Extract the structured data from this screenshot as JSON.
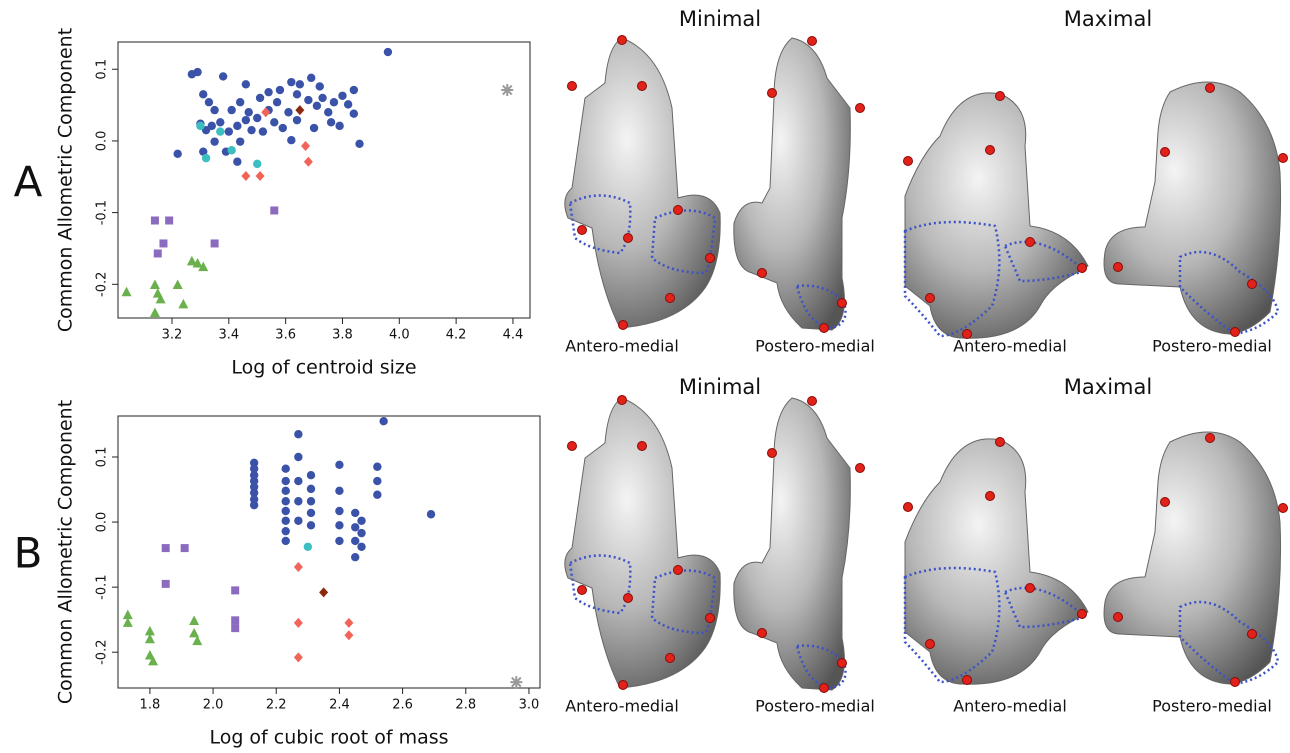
{
  "chart_data": [
    {
      "type": "scatter",
      "xlabel": "Log of centroid size",
      "ylabel": "Common Allometric Component",
      "xlim": [
        3.01,
        4.46
      ],
      "ylim": [
        -0.247,
        0.138
      ],
      "xticks": [
        3.2,
        3.4,
        3.6,
        3.8,
        {
          "value": 4.0,
          "label": "4.0"
        },
        4.2,
        4.4
      ],
      "yticks": [
        -0.2,
        -0.1,
        {
          "value": 0,
          "label": "0.0"
        },
        0.1
      ],
      "series": [
        {
          "color": "#3a52a8",
          "marker": "circle",
          "x": [
            3.27,
            3.29,
            3.38,
            3.46,
            3.31,
            3.33,
            3.35,
            3.51,
            3.54,
            3.58,
            3.62,
            3.65,
            3.69,
            3.72,
            3.73,
            3.64,
            3.68,
            3.71,
            3.75,
            3.77,
            3.8,
            3.82,
            3.84,
            3.84,
            3.76,
            3.79,
            3.7,
            3.64,
            3.61,
            3.59,
            3.56,
            3.52,
            3.48,
            3.46,
            3.43,
            3.4,
            3.37,
            3.34,
            3.32,
            3.3,
            3.41,
            3.44,
            3.47,
            3.5,
            3.54,
            3.57,
            3.62,
            3.44,
            3.43,
            3.86,
            3.96,
            3.22,
            3.39,
            3.31,
            3.35
          ],
          "values": [
            0.093,
            0.096,
            0.09,
            0.079,
            0.065,
            0.054,
            0.043,
            0.06,
            0.068,
            0.071,
            0.082,
            0.079,
            0.088,
            0.076,
            0.06,
            0.065,
            0.057,
            0.049,
            0.04,
            0.054,
            0.063,
            0.051,
            0.071,
            0.038,
            0.026,
            0.021,
            0.018,
            0.029,
            0.04,
            0.018,
            0.026,
            0.013,
            0.015,
            0.029,
            0.021,
            0.013,
            0.026,
            0.021,
            0.015,
            0.024,
            0.043,
            0.054,
            0.04,
            0.032,
            0.043,
            0.054,
            0.001,
            -0.001,
            -0.029,
            -0.004,
            0.124,
            -0.018,
            -0.015,
            -0.015,
            -0.001
          ]
        },
        {
          "color": "#3cbfc0",
          "marker": "circle",
          "x": [
            3.3,
            3.37,
            3.32,
            3.41,
            3.5
          ],
          "values": [
            0.021,
            0.013,
            -0.024,
            -0.013,
            -0.032
          ]
        },
        {
          "color": "#f0645a",
          "marker": "diamond",
          "x": [
            3.53,
            3.67,
            3.68,
            3.46,
            3.51
          ],
          "values": [
            0.04,
            -0.007,
            -0.029,
            -0.049,
            -0.049
          ]
        },
        {
          "color": "#8b2a10",
          "marker": "diamond",
          "x": [
            3.65
          ],
          "values": [
            0.043
          ]
        },
        {
          "color": "#8a6bbf",
          "marker": "square",
          "x": [
            3.14,
            3.19,
            3.17,
            3.15,
            3.35,
            3.56
          ],
          "values": [
            -0.111,
            -0.111,
            -0.143,
            -0.157,
            -0.143,
            -0.097
          ]
        },
        {
          "color": "#6ab04c",
          "marker": "triangle",
          "x": [
            3.04,
            3.14,
            3.15,
            3.16,
            3.14,
            3.22,
            3.24,
            3.27,
            3.29,
            3.31
          ],
          "values": [
            -0.211,
            -0.201,
            -0.213,
            -0.221,
            -0.24,
            -0.201,
            -0.228,
            -0.168,
            -0.171,
            -0.176
          ]
        },
        {
          "color": "#9a9a9a",
          "marker": "star",
          "x": [
            4.38
          ],
          "values": [
            0.071
          ]
        }
      ]
    },
    {
      "type": "scatter",
      "xlabel": "Log of cubic root of mass",
      "ylabel": "Common Allometric Component",
      "xlim": [
        1.699,
        3.035
      ],
      "ylim": [
        -0.255,
        0.163
      ],
      "xticks": [
        1.8,
        {
          "value": 2.0,
          "label": "2.0"
        },
        2.2,
        2.4,
        2.6,
        2.8,
        {
          "value": 3.0,
          "label": "3.0"
        }
      ],
      "yticks": [
        -0.2,
        -0.1,
        {
          "value": 0,
          "label": "0.0"
        },
        0.1
      ],
      "series": [
        {
          "color": "#3a52a8",
          "marker": "circle",
          "x": [
            2.13,
            2.13,
            2.13,
            2.13,
            2.13,
            2.13,
            2.13,
            2.13,
            2.23,
            2.23,
            2.23,
            2.23,
            2.23,
            2.23,
            2.23,
            2.23,
            2.27,
            2.27,
            2.27,
            2.27,
            2.27,
            2.31,
            2.31,
            2.31,
            2.31,
            2.31,
            2.4,
            2.4,
            2.4,
            2.4,
            2.4,
            2.45,
            2.45,
            2.45,
            2.45,
            2.47,
            2.47,
            2.47,
            2.52,
            2.52,
            2.52,
            2.54,
            2.69
          ],
          "values": [
            0.091,
            0.082,
            0.072,
            0.063,
            0.054,
            0.045,
            0.035,
            0.026,
            0.082,
            0.063,
            0.048,
            0.032,
            0.017,
            0.002,
            -0.014,
            -0.029,
            0.135,
            0.1,
            0.063,
            0.032,
            0.002,
            0.072,
            0.051,
            0.032,
            0.014,
            -0.005,
            0.088,
            0.048,
            0.017,
            -0.005,
            -0.029,
            0.014,
            -0.008,
            -0.029,
            -0.054,
            0.002,
            -0.017,
            -0.038,
            0.085,
            0.063,
            0.042,
            0.155,
            0.012
          ]
        },
        {
          "color": "#3cbfc0",
          "marker": "circle",
          "x": [
            2.3
          ],
          "values": [
            -0.038
          ]
        },
        {
          "color": "#f0645a",
          "marker": "diamond",
          "x": [
            2.27,
            2.27,
            2.27,
            2.43,
            2.43
          ],
          "values": [
            -0.069,
            -0.155,
            -0.208,
            -0.155,
            -0.174
          ]
        },
        {
          "color": "#8b2a10",
          "marker": "diamond",
          "x": [
            2.35
          ],
          "values": [
            -0.108
          ]
        },
        {
          "color": "#8a6bbf",
          "marker": "square",
          "x": [
            1.85,
            1.91,
            1.85,
            2.07,
            2.07,
            2.07
          ],
          "values": [
            -0.04,
            -0.04,
            -0.095,
            -0.105,
            -0.151,
            -0.163
          ]
        },
        {
          "color": "#6ab04c",
          "marker": "triangle",
          "x": [
            1.73,
            1.73,
            1.8,
            1.8,
            1.8,
            1.81,
            1.94,
            1.94,
            1.95
          ],
          "values": [
            -0.143,
            -0.155,
            -0.168,
            -0.18,
            -0.205,
            -0.214,
            -0.152,
            -0.171,
            -0.183
          ]
        },
        {
          "color": "#9a9a9a",
          "marker": "star",
          "x": [
            2.96
          ],
          "values": [
            -0.246
          ]
        }
      ]
    }
  ],
  "panels": [
    {
      "label": "A",
      "groups": [
        {
          "title": "Minimal",
          "views": [
            "Antero-medial",
            "Postero-medial"
          ]
        },
        {
          "title": "Maximal",
          "views": [
            "Antero-medial",
            "Postero-medial"
          ]
        }
      ]
    },
    {
      "label": "B",
      "groups": [
        {
          "title": "Minimal",
          "views": [
            "Antero-medial",
            "Postero-medial"
          ]
        },
        {
          "title": "Maximal",
          "views": [
            "Antero-medial",
            "Postero-medial"
          ]
        }
      ]
    }
  ]
}
